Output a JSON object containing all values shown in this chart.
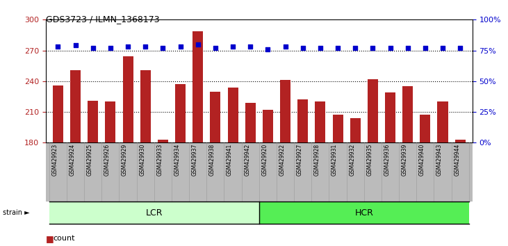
{
  "title": "GDS3723 / ILMN_1368173",
  "samples": [
    "GSM429923",
    "GSM429924",
    "GSM429925",
    "GSM429926",
    "GSM429929",
    "GSM429930",
    "GSM429933",
    "GSM429934",
    "GSM429937",
    "GSM429938",
    "GSM429941",
    "GSM429942",
    "GSM429920",
    "GSM429922",
    "GSM429927",
    "GSM429928",
    "GSM429931",
    "GSM429932",
    "GSM429935",
    "GSM429936",
    "GSM429939",
    "GSM429940",
    "GSM429943",
    "GSM429944"
  ],
  "counts": [
    236,
    251,
    221,
    220,
    264,
    251,
    183,
    237,
    289,
    230,
    234,
    219,
    212,
    241,
    222,
    220,
    207,
    204,
    242,
    229,
    235,
    207,
    220,
    183
  ],
  "percentile_ranks": [
    78,
    79,
    77,
    77,
    78,
    78,
    77,
    78,
    80,
    77,
    78,
    78,
    76,
    78,
    77,
    77,
    77,
    77,
    77,
    77,
    77,
    77,
    77,
    77
  ],
  "bar_color": "#B22222",
  "dot_color": "#0000CC",
  "ylim_left": [
    180,
    300
  ],
  "ylim_right": [
    0,
    100
  ],
  "yticks_left": [
    180,
    210,
    240,
    270,
    300
  ],
  "yticks_right": [
    0,
    25,
    50,
    75,
    100
  ],
  "grid_values": [
    210,
    240,
    270
  ],
  "bg_color": "#FFFFFF",
  "tick_area_color": "#BBBBBB",
  "lcr_color": "#CCFFCC",
  "hcr_color": "#55EE55",
  "legend_count_color": "#B22222",
  "legend_pct_color": "#0000CC",
  "n_lcr": 12,
  "n_hcr": 12
}
